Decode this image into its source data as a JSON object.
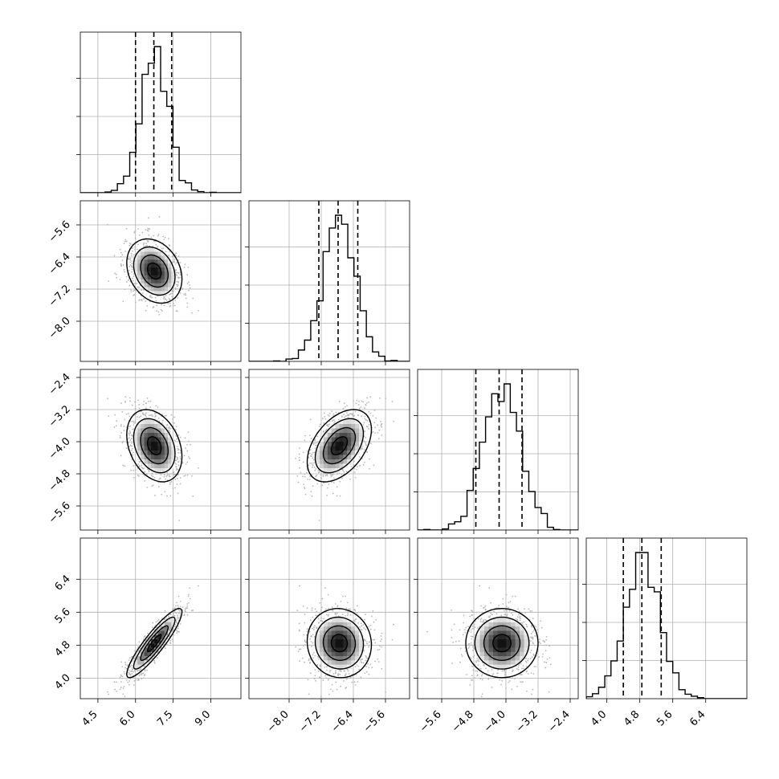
{
  "chart_data": {
    "type": "corner",
    "parameters": [
      {
        "range": [
          3.8,
          10.2
        ],
        "ticks": [
          4.5,
          6.0,
          7.5,
          9.0
        ],
        "tick_labels": [
          "4.5",
          "6.0",
          "7.5",
          "9.0"
        ],
        "mean": 6.75,
        "sd": 0.55,
        "quantiles": [
          6.0,
          6.73,
          7.44
        ]
      },
      {
        "range": [
          -9.0,
          -5.0
        ],
        "ticks": [
          -8.0,
          -7.2,
          -6.4,
          -5.6
        ],
        "tick_labels": [
          "−8.0",
          "−7.2",
          "−6.4",
          "−5.6"
        ],
        "mean": -6.75,
        "sd": 0.4,
        "quantiles": [
          -7.26,
          -6.78,
          -6.29
        ]
      },
      {
        "range": [
          -6.2,
          -2.2
        ],
        "ticks": [
          -5.6,
          -4.8,
          -4.0,
          -3.2,
          -2.4
        ],
        "tick_labels": [
          "−5.6",
          "−4.8",
          "−4.0",
          "−3.2",
          "−2.4"
        ],
        "mean": -4.1,
        "sd": 0.45,
        "quantiles": [
          -4.75,
          -4.17,
          -3.6
        ]
      },
      {
        "range": [
          3.5,
          7.4
        ],
        "ticks": [
          4.0,
          4.8,
          5.6,
          6.4
        ],
        "tick_labels": [
          "4.0",
          "4.8",
          "5.6",
          "6.4"
        ],
        "mean": 4.85,
        "sd": 0.42,
        "quantiles": [
          4.4,
          4.85,
          5.32
        ]
      }
    ],
    "correlations": [
      [
        1.0,
        -0.25,
        -0.3,
        0.9
      ],
      [
        -0.25,
        1.0,
        0.45,
        -0.05
      ],
      [
        -0.3,
        0.45,
        1.0,
        0.0
      ],
      [
        0.9,
        -0.05,
        0.0,
        1.0
      ]
    ],
    "diagonal": "1d-histograms",
    "off_diagonal": "2d-histogram-with-contours",
    "grid": true
  }
}
